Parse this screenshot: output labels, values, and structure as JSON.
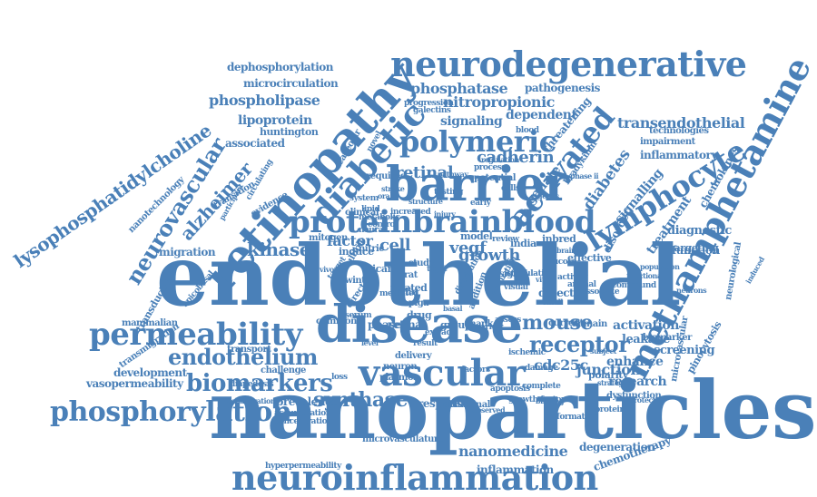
{
  "colors": {
    "word": "#4a80b8",
    "background": "#ffffff"
  },
  "words": [
    "endothelial",
    "nanoparticles",
    "methamphetamine",
    "disease",
    "retinopathy",
    "barrier",
    "neurodegenerative",
    "neuroinflammation",
    "vascular",
    "permeability",
    "proteinbrainblood",
    "diabetic",
    "lymphocyte",
    "polymeric",
    "activated",
    "phosphorylation",
    "biomarkers",
    "receptor",
    "neurovascular",
    "lysophosphatidylcholine",
    "alzheimer",
    "endothelium",
    "mouse",
    "transendothelial",
    "nitropropionic",
    "phosphatase",
    "phospholipase",
    "kinase",
    "dephosphorylation",
    "microcirculation",
    "synthase",
    "lipoprotein",
    "diabetes",
    "signaling",
    "retinal",
    "cadherin",
    "growth",
    "cell",
    "vegf",
    "factor",
    "migration",
    "activation",
    "nanomedicine",
    "degeneration",
    "inflammation",
    "chemotherapy",
    "junction",
    "screening",
    "enhance",
    "research",
    "diagnostic",
    "function",
    "treatment",
    "signalling",
    "inflammatory",
    "impairment",
    "technologies",
    "pathogenesis",
    "dependent",
    "associated",
    "huntington",
    "leakage",
    "cdc25c",
    "development",
    "transmigration",
    "vasopermeability",
    "hyperpermeability",
    "microvasculature",
    "mammalian",
    "transduction",
    "apicobasal",
    "nanotechnology",
    "detect",
    "retina",
    "phase",
    "response",
    "prevalence",
    "challenge",
    "neuron",
    "plasmon",
    "common",
    "transport",
    "biomarker",
    "bradykinin",
    "chemokines",
    "pinocytosis",
    "microvascular",
    "neurological",
    "gallate",
    "threatening",
    "progression",
    "galectins",
    "related",
    "mitogen",
    "nitric",
    "induce",
    "model",
    "inbred",
    "india",
    "drug",
    "abluminal",
    "disorder",
    "targeting",
    "effective",
    "current",
    "domain",
    "polarity",
    "dysfunction",
    "accumulation",
    "concentration",
    "group",
    "mapk",
    "icam",
    "rat",
    "study",
    "caveolar",
    "required",
    "system",
    "clinical",
    "transition",
    "evidence",
    "circulating",
    "diapedesis",
    "collaboration",
    "testing",
    "review",
    "potential",
    "participant",
    "pathway",
    "tight",
    "plga",
    "human",
    "winter",
    "cyclin",
    "multiple",
    "metabolic",
    "neural",
    "visual",
    "signal",
    "serum",
    "regulation",
    "stimulation",
    "population",
    "animal",
    "distribution",
    "addition",
    "direct",
    "delivery",
    "lipid",
    "control",
    "mediated",
    "target",
    "basal",
    "marker",
    "factors",
    "result",
    "level",
    "ischemic",
    "injury",
    "early",
    "loss",
    "complete",
    "subject",
    "strategies",
    "evaluation",
    "compound",
    "glucose",
    "functional",
    "associate",
    "apoptosis",
    "growth factor",
    "increased",
    "oral",
    "novel",
    "cells",
    "process",
    "assess",
    "extract",
    "damage",
    "activity",
    "structure",
    "vivo",
    "vitro",
    "small",
    "brain",
    "blood",
    "protein",
    "formation",
    "protect",
    "binding",
    "observed",
    "neurons",
    "induced",
    "genes",
    "stroke",
    "phase ii",
    "trial",
    "cohort",
    "barriers",
    "astrocytes",
    "pericytes"
  ]
}
